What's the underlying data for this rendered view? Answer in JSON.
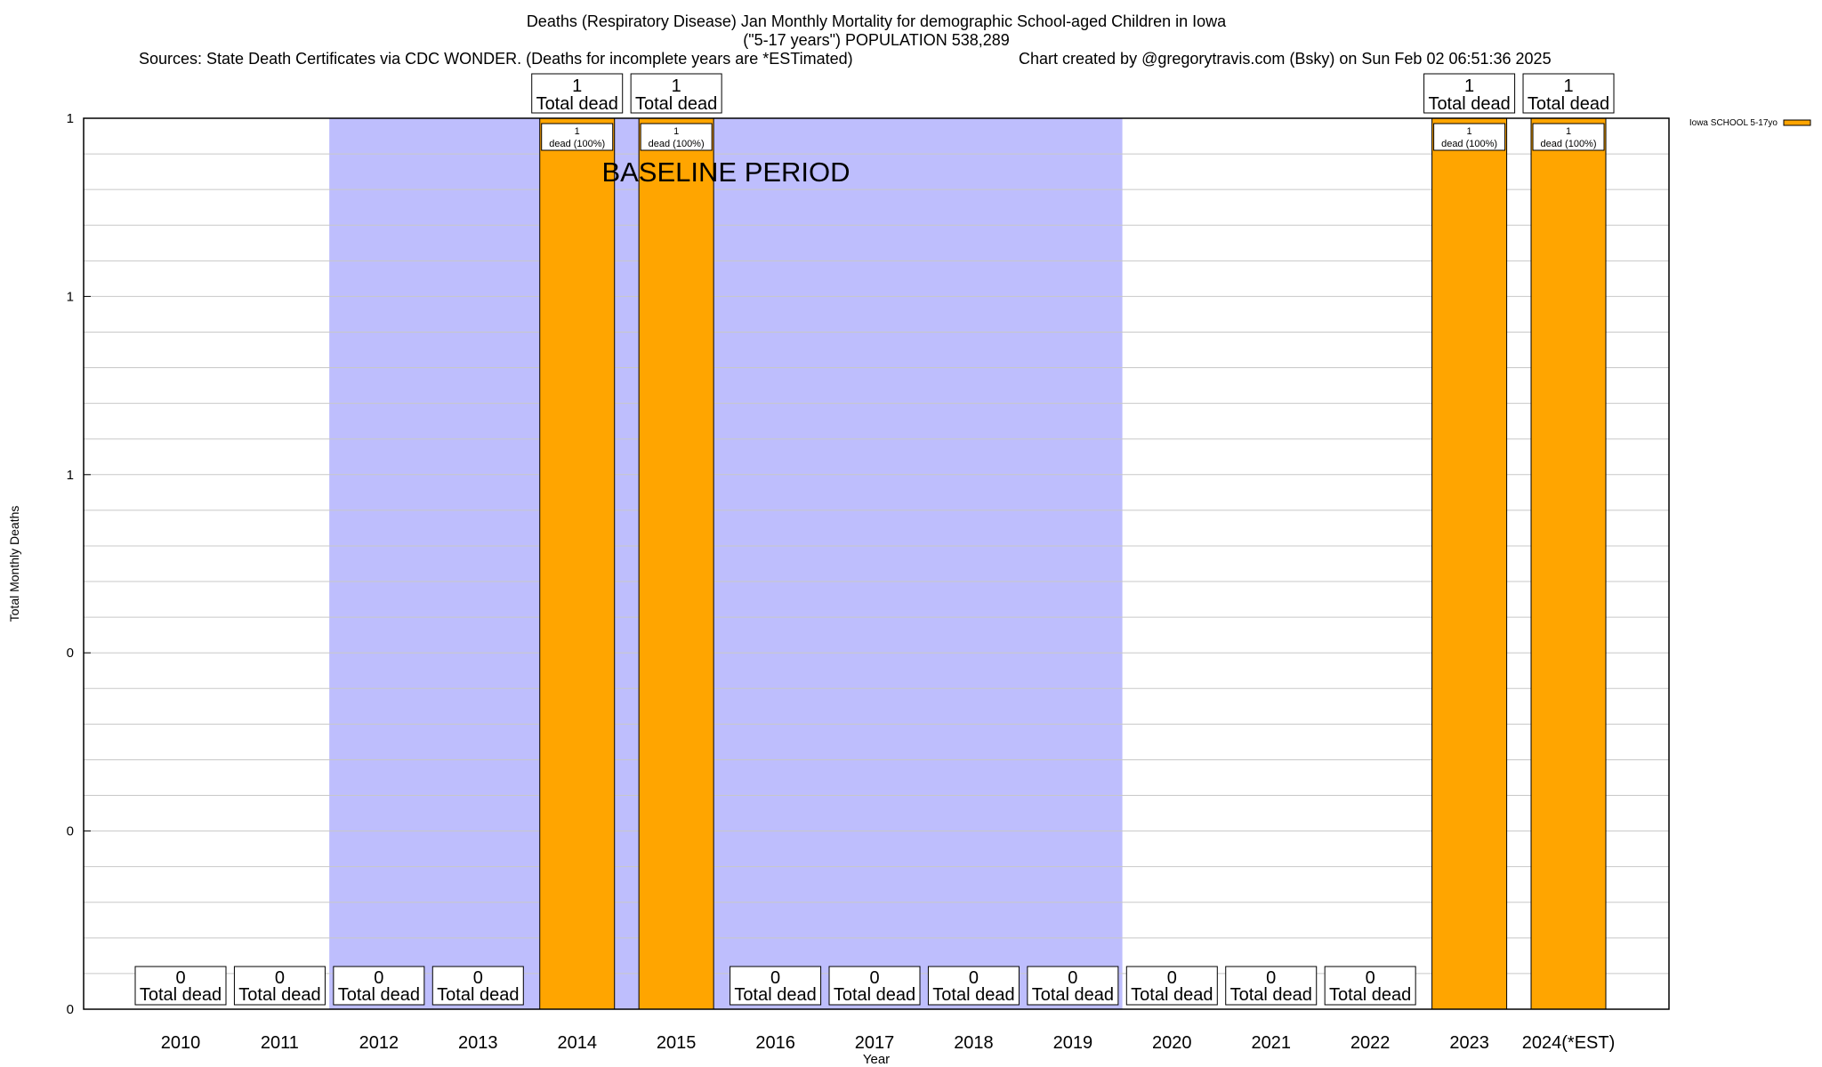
{
  "chart_data": {
    "type": "bar",
    "title": "Deaths (Respiratory Disease) Jan Monthly Mortality for demographic School-aged Children in Iowa",
    "subtitle": "(\"5-17 years\") POPULATION 538,289",
    "sources": "Sources: State Death Certificates via CDC WONDER. (Deaths for incomplete years are *ESTimated)",
    "credit": "Chart created by @gregorytravis.com (Bsky) on Sun Feb 02 06:51:36 2025",
    "xlabel": "Year",
    "ylabel": "Total Monthly Deaths",
    "ylim": [
      0,
      1
    ],
    "y_ticks": [
      {
        "value": 0,
        "label": "0"
      },
      {
        "value": 0.2,
        "label": "0"
      },
      {
        "value": 0.4,
        "label": "0"
      },
      {
        "value": 0.6,
        "label": "1"
      },
      {
        "value": 0.8,
        "label": "1"
      },
      {
        "value": 1.0,
        "label": "1"
      }
    ],
    "categories": [
      "2010",
      "2011",
      "2012",
      "2013",
      "2014",
      "2015",
      "2016",
      "2017",
      "2018",
      "2019",
      "2020",
      "2021",
      "2022",
      "2023",
      "2024(*EST)"
    ],
    "series": [
      {
        "name": "Iowa SCHOOL 5-17yo",
        "color": "#ffa500",
        "values": [
          0,
          0,
          0,
          0,
          1,
          1,
          0,
          0,
          0,
          0,
          0,
          0,
          0,
          1,
          1
        ]
      }
    ],
    "total_labels": [
      "0",
      "0",
      "0",
      "0",
      "1",
      "1",
      "0",
      "0",
      "0",
      "0",
      "0",
      "0",
      "0",
      "1",
      "1"
    ],
    "total_dead_text": "Total dead",
    "inner_labels": [
      "",
      "",
      "",
      "",
      "1",
      "1",
      "",
      "",
      "",
      "",
      "",
      "",
      "",
      "1",
      "1"
    ],
    "inner_sublabel": "dead (100%)",
    "baseline": {
      "label": "BASELINE PERIOD",
      "start_category": "2012",
      "end_category": "2019",
      "color": "#bebefd"
    },
    "legend_position": "top-right",
    "colors": {
      "bar": "#ffa500",
      "baseline": "#bebefd",
      "grid": "#c8c8c8"
    }
  }
}
